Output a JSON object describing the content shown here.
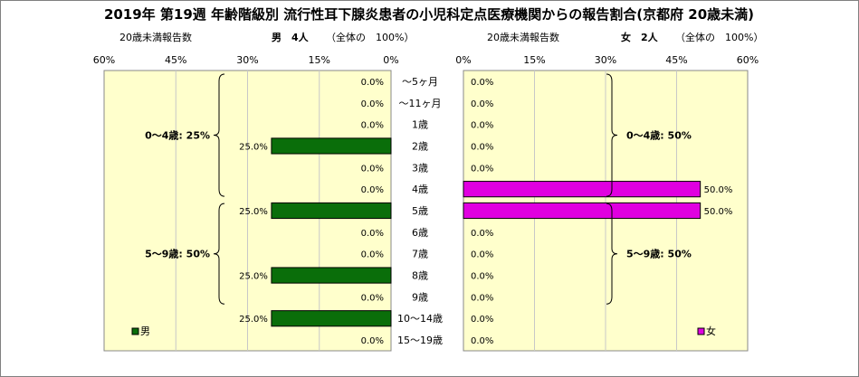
{
  "title": "2019年 第19週 年齢階級別 流行性耳下腺炎患者の小児科定点医療機関からの報告割合(京都府 20歳未満)",
  "male_header": {
    "sub": "20歳未満報告数",
    "label": "男",
    "count": "4人",
    "share": "（全体の　100%）"
  },
  "female_header": {
    "sub": "20歳未満報告数",
    "label": "女",
    "count": "2人",
    "share": "（全体の　100%）"
  },
  "chart_data": {
    "type": "bar",
    "orientation": "horizontal-butterfly",
    "categories": [
      "～5ヶ月",
      "～11ヶ月",
      "1歳",
      "2歳",
      "3歳",
      "4歳",
      "5歳",
      "6歳",
      "7歳",
      "8歳",
      "9歳",
      "10～14歳",
      "15～19歳"
    ],
    "series": [
      {
        "name": "男",
        "color": "#0a6e0a",
        "values": [
          0,
          0,
          0,
          25,
          0,
          0,
          25,
          0,
          0,
          25,
          0,
          25,
          0
        ],
        "labels": [
          "0.0%",
          "0.0%",
          "0.0%",
          "25.0%",
          "0.0%",
          "0.0%",
          "25.0%",
          "0.0%",
          "0.0%",
          "25.0%",
          "0.0%",
          "25.0%",
          "0.0%"
        ]
      },
      {
        "name": "女",
        "color": "#e000e0",
        "values": [
          0,
          0,
          0,
          0,
          0,
          50,
          50,
          0,
          0,
          0,
          0,
          0,
          0
        ],
        "labels": [
          "0.0%",
          "0.0%",
          "0.0%",
          "0.0%",
          "0.0%",
          "50.0%",
          "50.0%",
          "0.0%",
          "0.0%",
          "0.0%",
          "0.0%",
          "0.0%",
          "0.0%"
        ]
      }
    ],
    "xlim": [
      0,
      60
    ],
    "ticks": [
      0,
      15,
      30,
      45,
      60
    ],
    "tick_labels": [
      "0%",
      "15%",
      "30%",
      "45%",
      "60%"
    ],
    "xlabel": "",
    "ylabel": "",
    "grid": true,
    "group_annotations": {
      "male": [
        {
          "text": "0～4歳: 25%",
          "from": 0,
          "to": 5
        },
        {
          "text": "5～9歳: 50%",
          "from": 6,
          "to": 10
        }
      ],
      "female": [
        {
          "text": "0～4歳: 50%",
          "from": 0,
          "to": 5
        },
        {
          "text": "5～9歳: 50%",
          "from": 6,
          "to": 10
        }
      ]
    },
    "legend": [
      {
        "name": "男",
        "placement": "bottom-left"
      },
      {
        "name": "女",
        "placement": "bottom-right"
      }
    ],
    "colors": {
      "plot_background": "#ffffcc",
      "male_bar": "#0a6e0a",
      "female_bar": "#e000e0",
      "grid": "#c8c8c8"
    }
  }
}
